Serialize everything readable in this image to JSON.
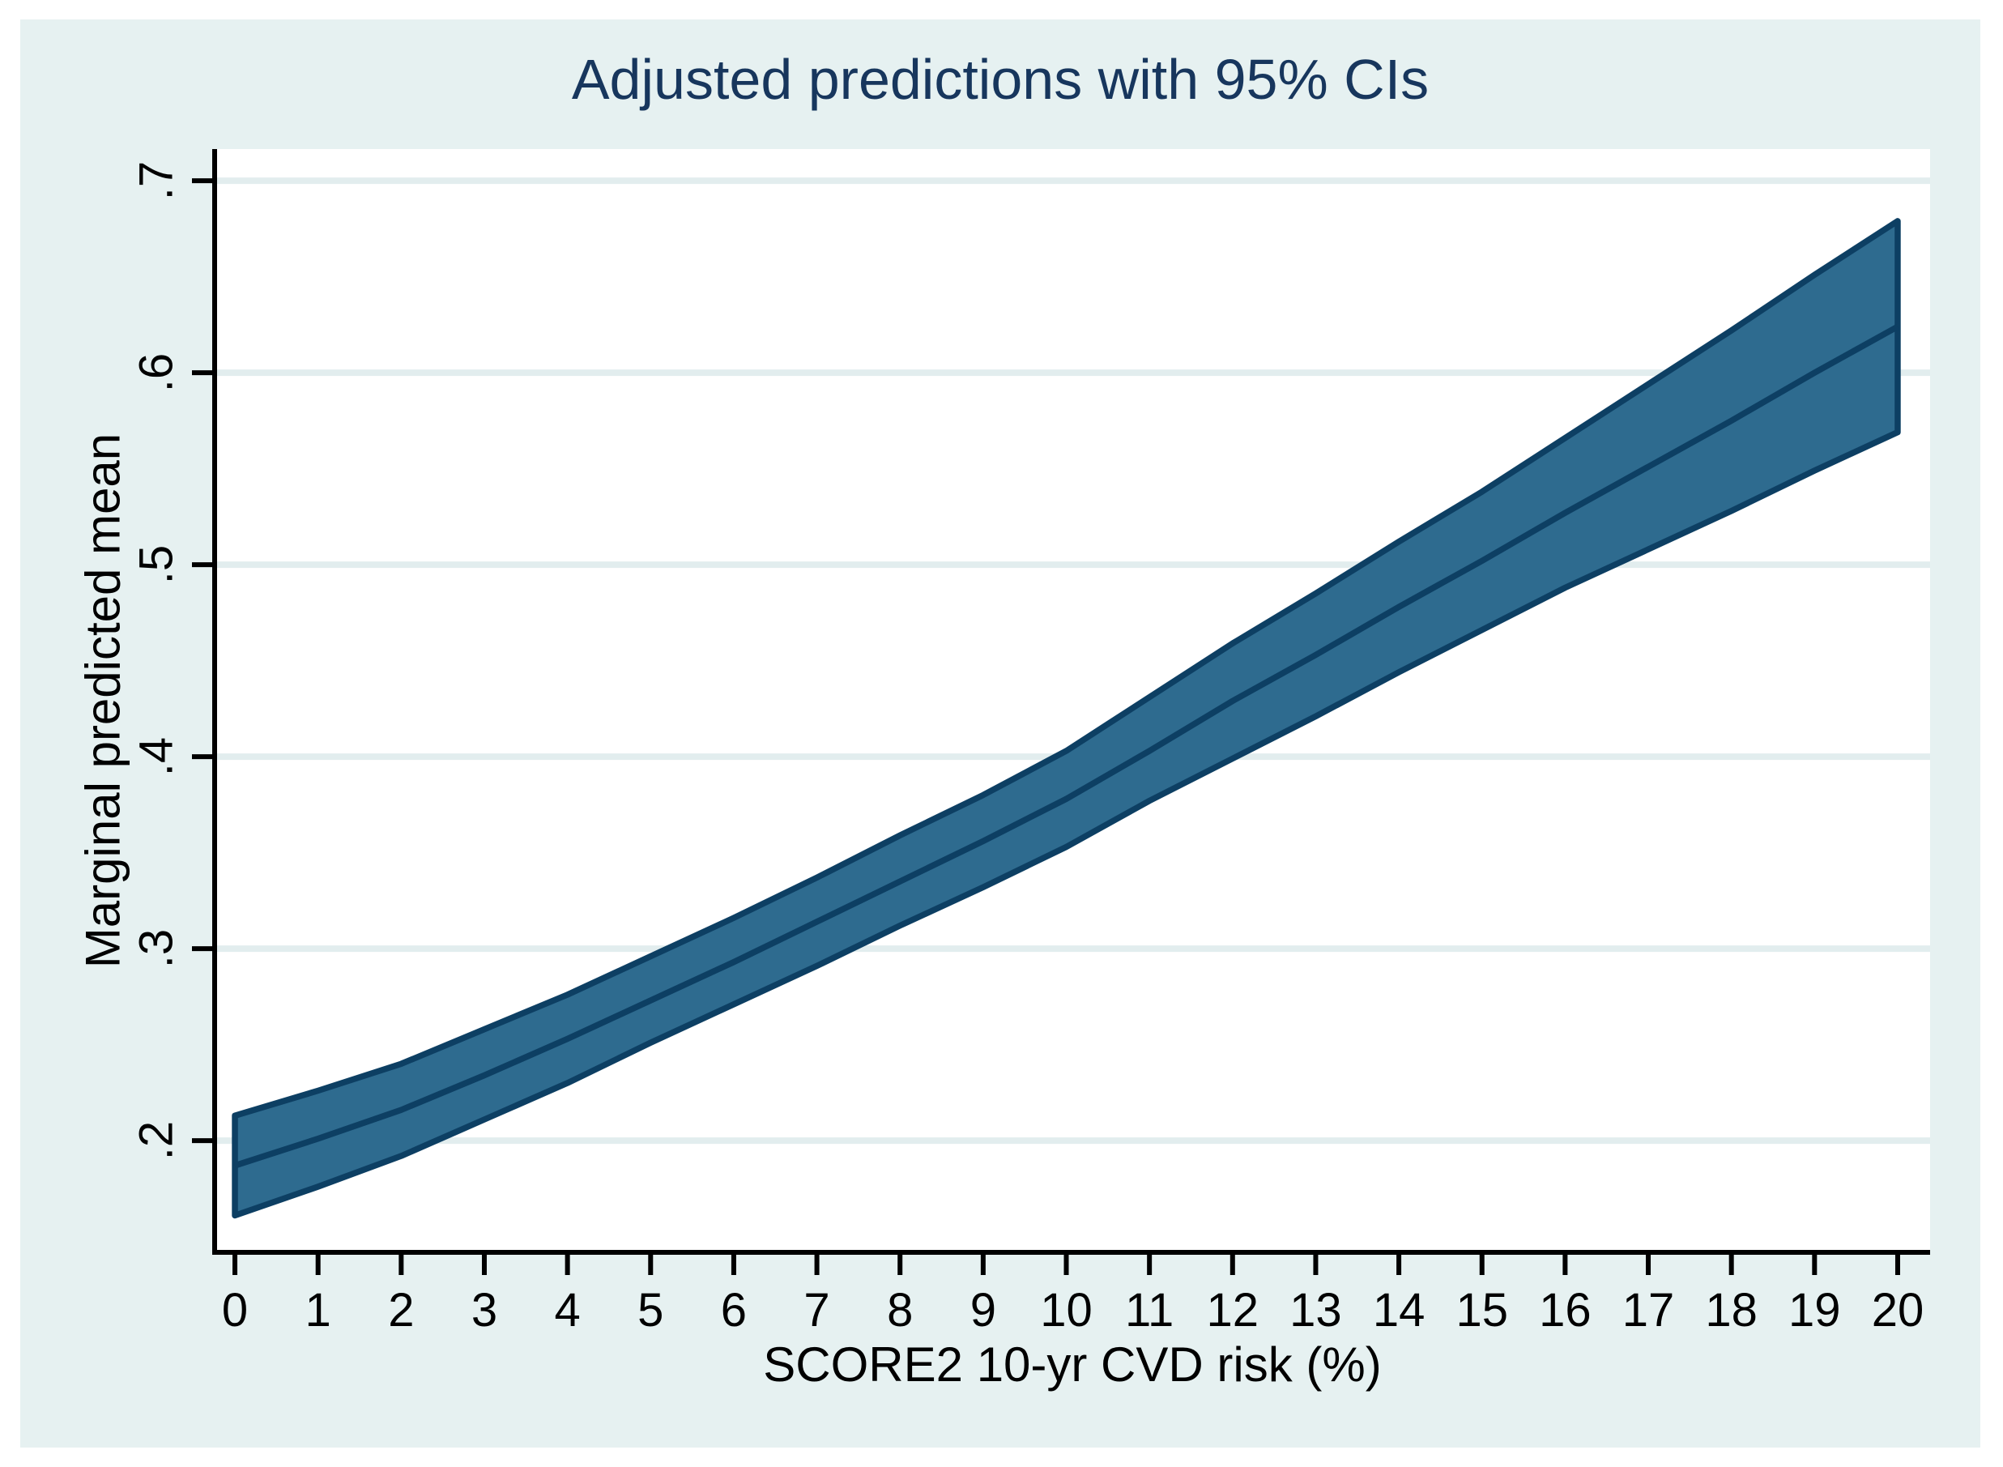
{
  "page": {
    "title": "Adjusted predictions with 95% CIs"
  },
  "chart_data": {
    "type": "area",
    "title": "Adjusted predictions with 95% CIs",
    "xlabel": "SCORE2 10-yr CVD risk (%)",
    "ylabel": "Marginal predicted mean",
    "legend": "none",
    "grid": "horizontal",
    "x": [
      0,
      1,
      2,
      3,
      4,
      5,
      6,
      7,
      8,
      9,
      10,
      11,
      12,
      13,
      14,
      15,
      16,
      17,
      18,
      19,
      20
    ],
    "series": [
      {
        "name": "Adjusted prediction",
        "values": [
          0.187,
          0.201,
          0.216,
          0.234,
          0.253,
          0.273,
          0.293,
          0.314,
          0.335,
          0.356,
          0.378,
          0.403,
          0.429,
          0.453,
          0.478,
          0.502,
          0.527,
          0.551,
          0.575,
          0.6,
          0.624
        ]
      },
      {
        "name": "95% CI lower bound",
        "values": [
          0.161,
          0.176,
          0.192,
          0.211,
          0.23,
          0.251,
          0.271,
          0.291,
          0.312,
          0.332,
          0.353,
          0.377,
          0.399,
          0.421,
          0.444,
          0.466,
          0.488,
          0.508,
          0.528,
          0.549,
          0.569
        ]
      },
      {
        "name": "95% CI upper bound",
        "values": [
          0.213,
          0.226,
          0.24,
          0.258,
          0.276,
          0.296,
          0.316,
          0.337,
          0.359,
          0.38,
          0.403,
          0.431,
          0.459,
          0.485,
          0.512,
          0.538,
          0.566,
          0.594,
          0.622,
          0.651,
          0.679
        ]
      }
    ],
    "xticks": [
      "0",
      "1",
      "2",
      "3",
      "4",
      "5",
      "6",
      "7",
      "8",
      "9",
      "10",
      "11",
      "12",
      "13",
      "14",
      "15",
      "16",
      "17",
      "18",
      "19",
      "20"
    ],
    "xtick_values": [
      0,
      1,
      2,
      3,
      4,
      5,
      6,
      7,
      8,
      9,
      10,
      11,
      12,
      13,
      14,
      15,
      16,
      17,
      18,
      19,
      20
    ],
    "yticks": [
      ".2",
      ".3",
      ".4",
      ".5",
      ".6",
      ".7"
    ],
    "ytick_values": [
      0.2,
      0.3,
      0.4,
      0.5,
      0.6,
      0.7
    ],
    "xlim": [
      -0.244,
      20.39
    ],
    "ylim": [
      0.1418,
      0.7165
    ],
    "colors": {
      "canvas_bg": "#e6f1f1",
      "plot_bg": "#ffffff",
      "grid": "#e2edee",
      "axis": "#000000",
      "band_fill": "#2e6b8f",
      "band_edge": "#0d3f63",
      "title": "#17365d"
    }
  }
}
